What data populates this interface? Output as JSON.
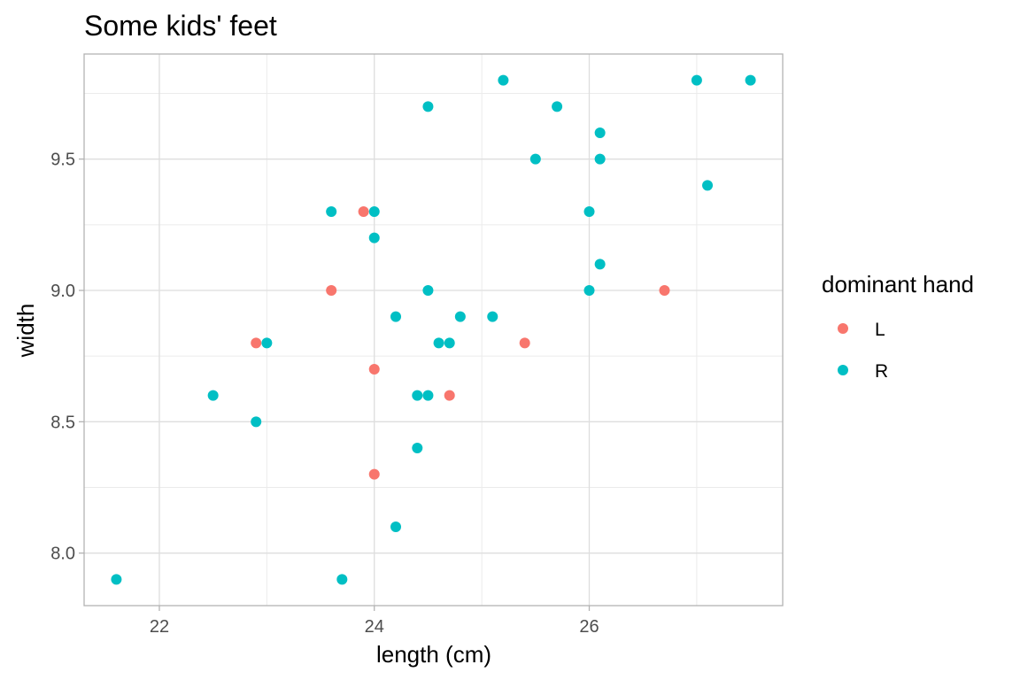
{
  "chart_data": {
    "type": "scatter",
    "title": "Some kids' feet",
    "xlabel": "length (cm)",
    "ylabel": "width",
    "xlim": [
      21.3,
      27.8
    ],
    "ylim": [
      7.8,
      9.9
    ],
    "x_ticks": [
      22,
      24,
      26
    ],
    "x_tick_labels": [
      "22",
      "24",
      "26"
    ],
    "x_minor_ticks": [
      23,
      25,
      27
    ],
    "y_ticks": [
      8.0,
      8.5,
      9.0,
      9.5
    ],
    "y_tick_labels": [
      "8.0",
      "8.5",
      "9.0",
      "9.5"
    ],
    "y_minor_ticks": [
      8.25,
      8.75,
      9.25,
      9.75
    ],
    "grid": true,
    "legend": {
      "title": "dominant hand",
      "position": "right"
    },
    "series": [
      {
        "name": "L",
        "color": "#F8766D",
        "points": [
          [
            22.9,
            8.8
          ],
          [
            23.6,
            9.0
          ],
          [
            23.9,
            9.3
          ],
          [
            24.0,
            8.7
          ],
          [
            24.0,
            8.3
          ],
          [
            24.7,
            8.6
          ],
          [
            25.4,
            8.8
          ],
          [
            26.7,
            9.0
          ]
        ]
      },
      {
        "name": "R",
        "color": "#00BFC4",
        "points": [
          [
            21.6,
            7.9
          ],
          [
            22.5,
            8.6
          ],
          [
            22.9,
            8.5
          ],
          [
            23.0,
            8.8
          ],
          [
            23.6,
            9.3
          ],
          [
            23.7,
            7.9
          ],
          [
            24.0,
            9.3
          ],
          [
            24.0,
            9.2
          ],
          [
            24.2,
            8.9
          ],
          [
            24.2,
            8.1
          ],
          [
            24.4,
            8.6
          ],
          [
            24.4,
            8.4
          ],
          [
            24.5,
            9.7
          ],
          [
            24.5,
            9.0
          ],
          [
            24.5,
            8.6
          ],
          [
            24.6,
            8.8
          ],
          [
            24.7,
            8.8
          ],
          [
            24.8,
            8.9
          ],
          [
            25.1,
            8.9
          ],
          [
            25.2,
            9.8
          ],
          [
            25.5,
            9.5
          ],
          [
            25.7,
            9.7
          ],
          [
            26.0,
            9.3
          ],
          [
            26.0,
            9.0
          ],
          [
            26.1,
            9.6
          ],
          [
            26.1,
            9.5
          ],
          [
            26.1,
            9.1
          ],
          [
            27.0,
            9.8
          ],
          [
            27.1,
            9.4
          ],
          [
            27.5,
            9.8
          ]
        ]
      }
    ]
  }
}
